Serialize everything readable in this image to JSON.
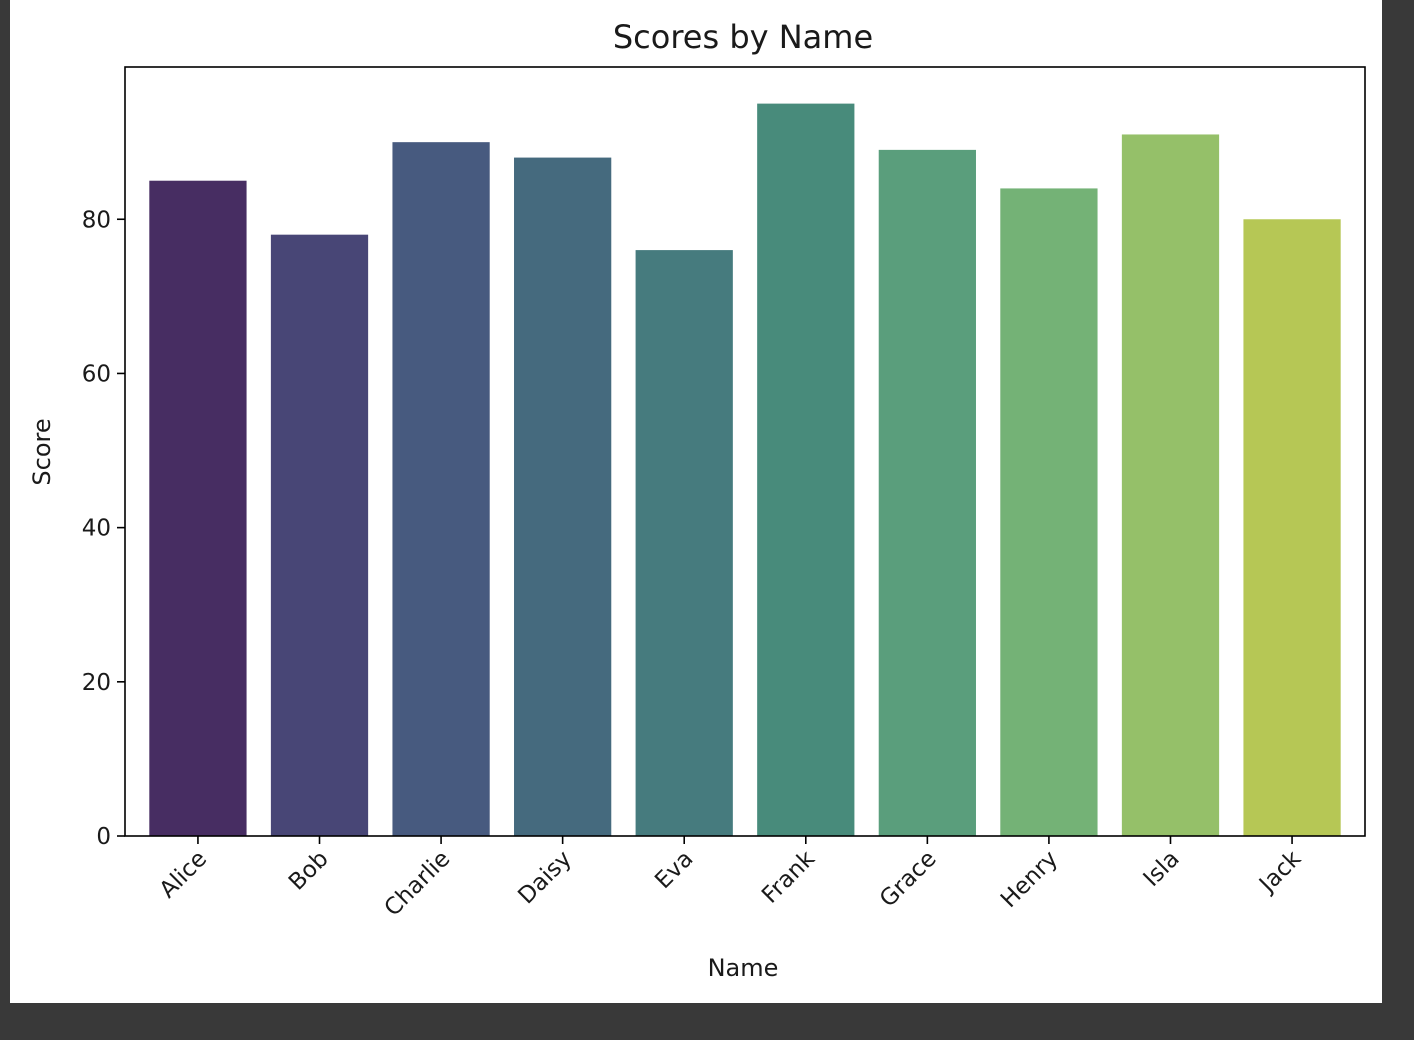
{
  "chart_data": {
    "type": "bar",
    "title": "Scores by Name",
    "xlabel": "Name",
    "ylabel": "Score",
    "categories": [
      "Alice",
      "Bob",
      "Charlie",
      "Daisy",
      "Eva",
      "Frank",
      "Grace",
      "Henry",
      "Isla",
      "Jack"
    ],
    "values": [
      85,
      78,
      90,
      88,
      76,
      95,
      89,
      84,
      91,
      80
    ],
    "colors": [
      "#472D62",
      "#484676",
      "#475A7F",
      "#456A7E",
      "#467B7E",
      "#488B7B",
      "#5A9E7C",
      "#74B276",
      "#95C069",
      "#B6C755"
    ],
    "ylim": [
      0,
      99.75
    ],
    "yticks": [
      0,
      20,
      40,
      60,
      80
    ],
    "grid": false
  }
}
